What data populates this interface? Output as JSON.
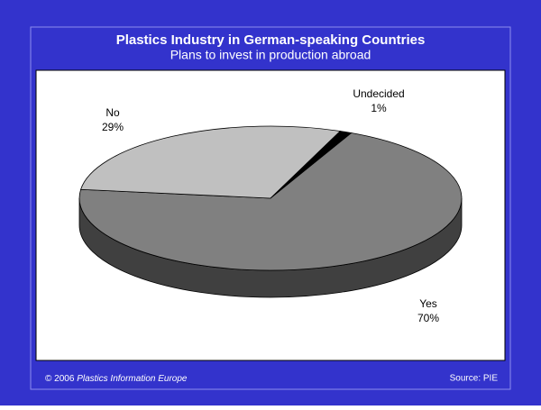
{
  "chart_data": {
    "type": "pie3d",
    "title": "Plastics Industry in German-speaking Countries",
    "subtitle": "Plans to invest in production abroad",
    "categories": [
      "Yes",
      "No",
      "Undecided"
    ],
    "values": [
      70,
      29,
      1
    ],
    "value_labels": [
      "70%",
      "29%",
      "1%"
    ],
    "colors": [
      "#808080",
      "#c0c0c0",
      "#000000"
    ]
  },
  "footer": {
    "copyright": "© 2006",
    "publisher": "Plastics Information Europe",
    "source": "Source: PIE"
  }
}
